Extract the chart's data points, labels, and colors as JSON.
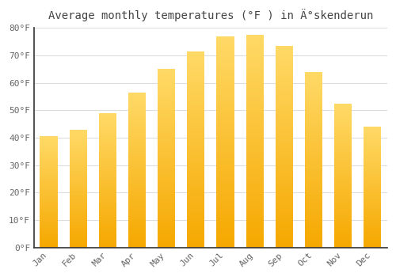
{
  "title": "Average monthly temperatures (°F ) in Ä°skenderun",
  "months": [
    "Jan",
    "Feb",
    "Mar",
    "Apr",
    "May",
    "Jun",
    "Jul",
    "Aug",
    "Sep",
    "Oct",
    "Nov",
    "Dec"
  ],
  "values": [
    40.5,
    43,
    49,
    56.5,
    65,
    71.5,
    77,
    77.5,
    73.5,
    64,
    52.5,
    44
  ],
  "bar_color_dark": "#F5A800",
  "bar_color_light": "#FFD966",
  "ylim": [
    0,
    80
  ],
  "ytick_step": 10,
  "background_color": "#FFFFFF",
  "plot_bg_color": "#FFFFFF",
  "grid_color": "#DDDDDD",
  "title_fontsize": 10,
  "tick_fontsize": 8,
  "spine_color": "#333333",
  "tick_color": "#666666"
}
